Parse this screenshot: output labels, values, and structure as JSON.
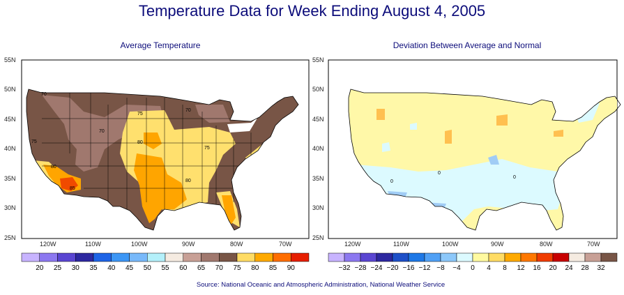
{
  "title": "Temperature Data for Week Ending August 4, 2005",
  "source": "Source:  National Oceanic and Atmospheric Administration, National Weather Service",
  "left_map": {
    "subtitle": "Average Temperature",
    "lat_labels": [
      "55N",
      "50N",
      "45N",
      "40N",
      "35N",
      "30N",
      "25N"
    ],
    "lon_labels": [
      "120W",
      "110W",
      "100W",
      "90W",
      "80W",
      "70W"
    ],
    "contour_labels": [
      "70",
      "75",
      "70",
      "70",
      "75",
      "80",
      "75",
      "80",
      "85",
      "80"
    ],
    "legend_values": [
      "20",
      "25",
      "30",
      "35",
      "40",
      "45",
      "50",
      "55",
      "60",
      "65",
      "70",
      "75",
      "80",
      "85",
      "90"
    ],
    "legend_colors": [
      "#c8b4ff",
      "#8c78f0",
      "#5a46d2",
      "#2d28a0",
      "#1e64e6",
      "#3c96f5",
      "#78b9fa",
      "#b4f0fa",
      "#f5ebe1",
      "#c8a096",
      "#a0786e",
      "#785546",
      "#ffdc64",
      "#ffaa00",
      "#ff6e00",
      "#e61e00"
    ],
    "region_colors": {
      "brown": "#785546",
      "taupe": "#a0786e",
      "yellow": "#ffe06e",
      "orange": "#ffa500",
      "red": "#f04a00",
      "white": "#ffffff"
    }
  },
  "right_map": {
    "subtitle": "Deviation Between Average and Normal",
    "lat_labels": [
      "55N",
      "50N",
      "45N",
      "40N",
      "35N",
      "30N",
      "25N"
    ],
    "lon_labels": [
      "120W",
      "110W",
      "100W",
      "90W",
      "80W",
      "70W"
    ],
    "contour_labels": [
      "0",
      "0",
      "0"
    ],
    "legend_values": [
      "−32",
      "−28",
      "−24",
      "−20",
      "−16",
      "−12",
      "−8",
      "−4",
      "0",
      "4",
      "8",
      "12",
      "16",
      "20",
      "24",
      "28",
      "32"
    ],
    "legend_colors": [
      "#c8b4ff",
      "#8c78f0",
      "#5a46d2",
      "#2d28a0",
      "#1e50c8",
      "#1e78e6",
      "#50a0f5",
      "#8cc8fa",
      "#dcfaff",
      "#fffaa0",
      "#ffdc64",
      "#ffaa00",
      "#ff7800",
      "#f03c00",
      "#c80000",
      "#f5ebe1",
      "#c8a096",
      "#785546"
    ],
    "region_colors": {
      "cream": "#fff8a8",
      "lightcyan": "#dcfaff",
      "lightblue": "#a0ccf5",
      "orange": "#ffc050"
    }
  }
}
